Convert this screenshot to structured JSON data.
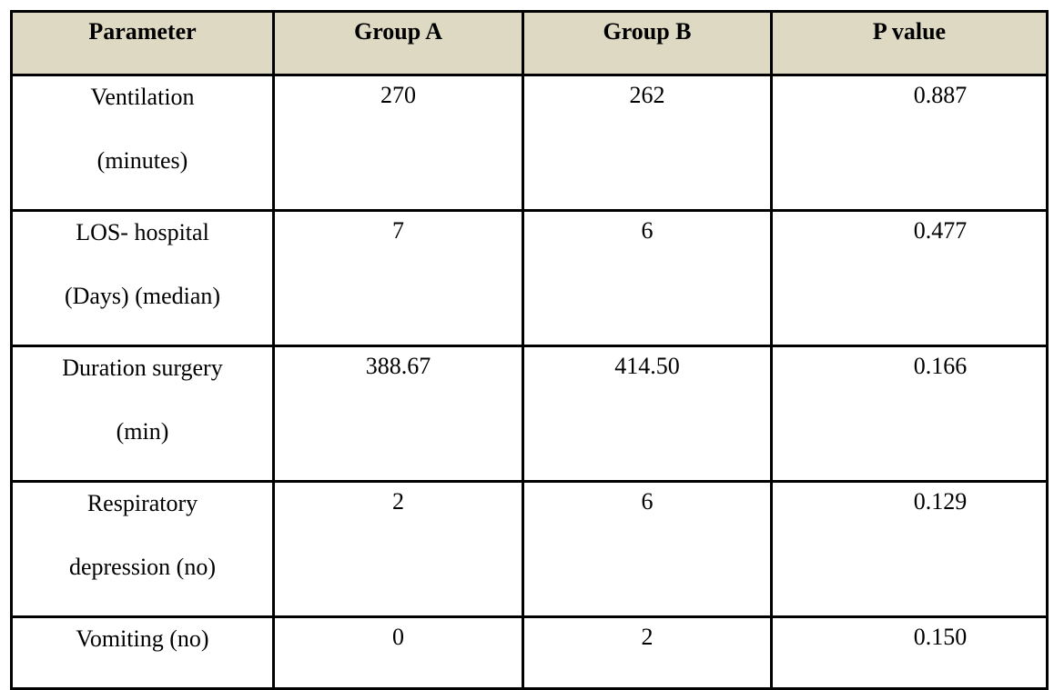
{
  "table": {
    "header": [
      "Parameter",
      "Group A",
      "Group B",
      "P value"
    ],
    "rows": [
      {
        "parameter": [
          "Ventilation",
          "(minutes)"
        ],
        "values": [
          "270",
          "262",
          "0.887"
        ]
      },
      {
        "parameter": [
          "LOS- hospital",
          "(Days) (median)"
        ],
        "values": [
          "7",
          "6",
          "0.477"
        ]
      },
      {
        "parameter": [
          "Duration surgery",
          "(min)"
        ],
        "values": [
          "388.67",
          "414.50",
          "0.166"
        ]
      },
      {
        "parameter": [
          "Respiratory",
          "depression (no)"
        ],
        "values": [
          "2",
          "6",
          "0.129"
        ]
      },
      {
        "parameter": [
          "Vomiting (no)"
        ],
        "values": [
          "0",
          "2",
          "0.150"
        ]
      }
    ]
  }
}
